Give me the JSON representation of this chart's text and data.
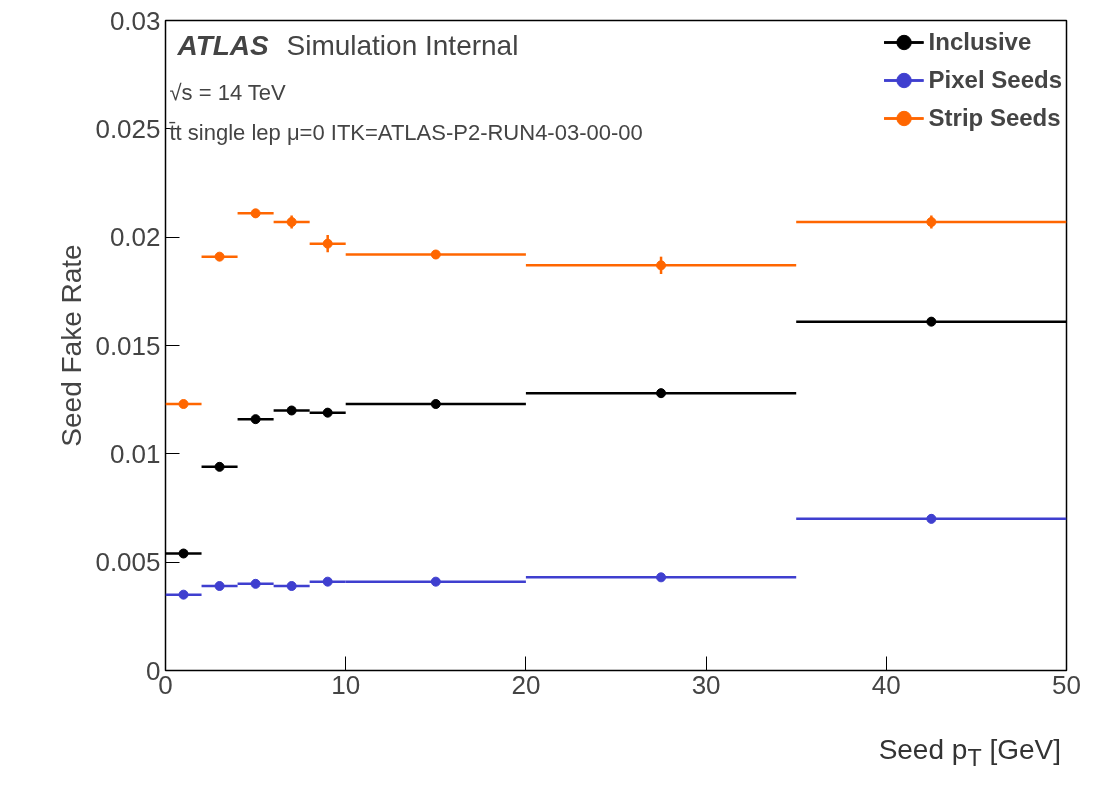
{
  "chart_data": {
    "type": "scatter",
    "xlabel": "Seed p$_{T}$ [GeV]",
    "ylabel": "Seed Fake Rate",
    "x": [
      1,
      3,
      5,
      7,
      9,
      15,
      27.5,
      42.5
    ],
    "series": [
      {
        "name": "Inclusive",
        "color": "#000000",
        "xerrors": [
          1,
          1,
          1,
          1,
          1,
          5,
          7.5,
          7.5
        ],
        "values": [
          0.0054,
          0.0094,
          0.0116,
          0.012,
          0.0119,
          0.0123,
          0.0128,
          0.0161
        ],
        "errors": [
          0.0001,
          0.0001,
          0.0001,
          0.0001,
          0.0002,
          0.0001,
          0.0002,
          0.0002
        ]
      },
      {
        "name": "Pixel Seeds",
        "color": "#3f3fcf",
        "xerrors": [
          1,
          1,
          1,
          1,
          1,
          5,
          7.5,
          7.5
        ],
        "values": [
          0.0035,
          0.0039,
          0.004,
          0.0039,
          0.0041,
          0.0041,
          0.0043,
          0.007
        ],
        "errors": [
          0.0001,
          0.0001,
          0.0001,
          0.0001,
          0.0001,
          0.0001,
          0.0001,
          0.0002
        ]
      },
      {
        "name": "Strip Seeds",
        "color": "#ff6600",
        "xerrors": [
          1,
          1,
          1,
          1,
          1,
          5,
          7.5,
          7.5
        ],
        "values": [
          0.0123,
          0.0191,
          0.0211,
          0.0207,
          0.0197,
          0.0192,
          0.0187,
          0.0207
        ],
        "errors": [
          0.0001,
          0.0001,
          0.0002,
          0.0003,
          0.0004,
          0.0002,
          0.0004,
          0.0003
        ]
      }
    ],
    "xlim": [
      0,
      50
    ],
    "ylim": [
      0,
      0.03
    ],
    "xticks": [
      0,
      10,
      20,
      30,
      40,
      50
    ],
    "yticks": [
      0,
      0.005,
      0.01,
      0.015,
      0.02,
      0.025,
      0.03
    ],
    "marker": "circle",
    "legend": "top right",
    "grid": false,
    "annotations": [
      "ATLAS",
      "Simulation Internal",
      "√s = 14 TeV",
      "t̄t single lep μ=0 ITK=ATLAS-P2-RUN4-03-00-00"
    ]
  }
}
